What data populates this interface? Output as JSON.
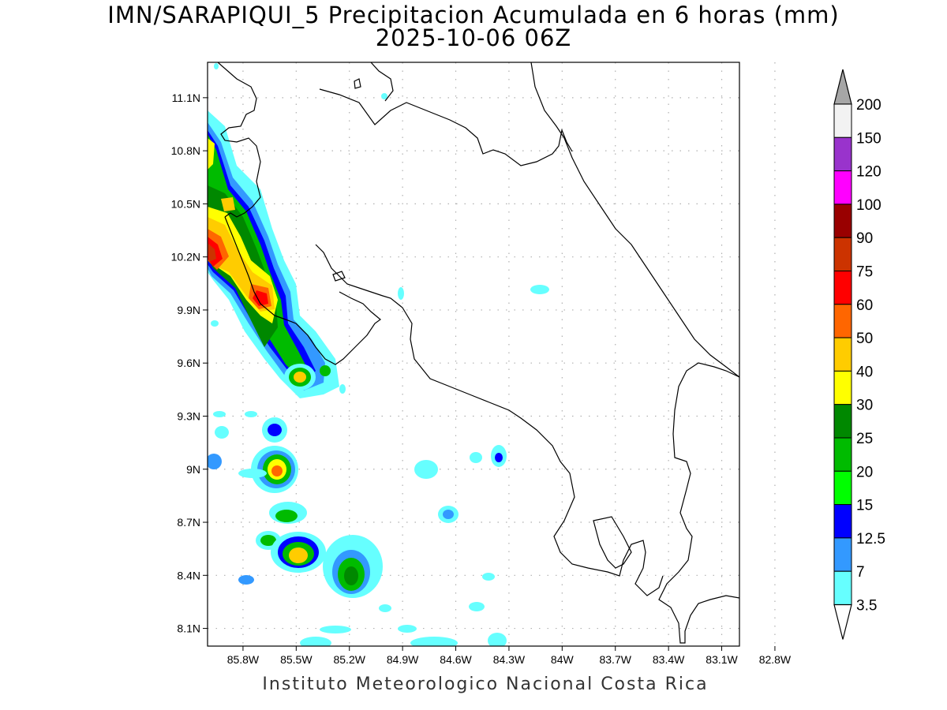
{
  "title": {
    "line1": "IMN/SARAPIQUI_5 Precipitacion Acumulada en 6 horas (mm)",
    "line2": "2025-10-06 06Z"
  },
  "credit": "Instituto Meteorologico Nacional Costa Rica",
  "map": {
    "lon_range": [
      -86.0,
      -83.0
    ],
    "lat_range": [
      8.0,
      11.3
    ],
    "lat_ticks": [
      "11.1N",
      "10.8N",
      "10.5N",
      "10.2N",
      "9.9N",
      "9.6N",
      "9.3N",
      "9N",
      "8.7N",
      "8.4N",
      "8.1N"
    ],
    "lon_ticks": [
      "85.8W",
      "85.5W",
      "85.2W",
      "84.9W",
      "84.6W",
      "84.3W",
      "84W",
      "83.7W",
      "83.4W",
      "83.1W",
      "82.8W"
    ],
    "grid": true
  },
  "colorbar": {
    "labels": [
      "200",
      "150",
      "120",
      "100",
      "90",
      "75",
      "60",
      "50",
      "40",
      "30",
      "25",
      "20",
      "15",
      "12.5",
      "7",
      "3.5"
    ],
    "colors": [
      "#ffffff",
      "#f2f2f2",
      "#9933cc",
      "#ff00ff",
      "#990000",
      "#cc3300",
      "#ff0000",
      "#ff6600",
      "#ffcc00",
      "#ffff00",
      "#008800",
      "#00bb00",
      "#00ff00",
      "#0000ff",
      "#3399ff",
      "#66ffff"
    ],
    "top_arrow_color": "#a6a6a6",
    "bottom_arrow_color": "#ffffff"
  }
}
